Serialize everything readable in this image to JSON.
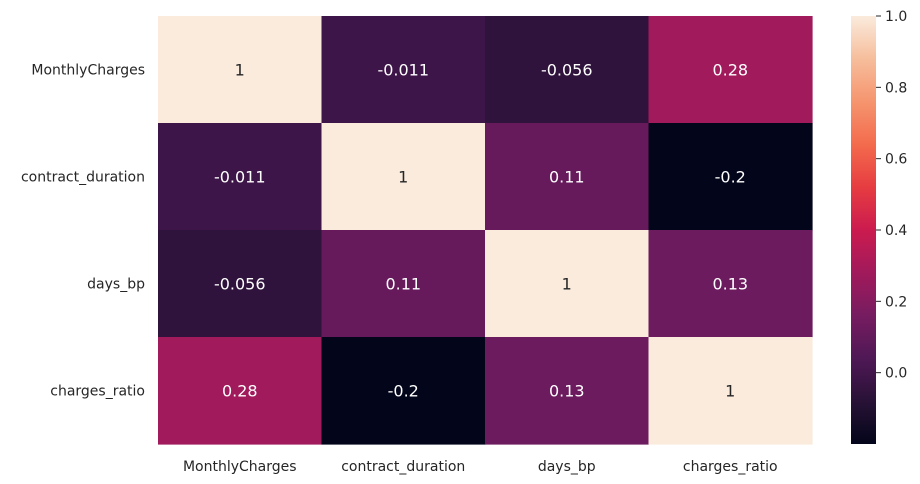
{
  "chart_data": {
    "type": "heatmap",
    "row_labels": [
      "MonthlyCharges",
      "contract_duration",
      "days_bp",
      "charges_ratio"
    ],
    "col_labels": [
      "MonthlyCharges",
      "contract_duration",
      "days_bp",
      "charges_ratio"
    ],
    "values": [
      [
        1,
        -0.011,
        -0.056,
        0.28
      ],
      [
        -0.011,
        1,
        0.11,
        -0.2
      ],
      [
        -0.056,
        0.11,
        1,
        0.13
      ],
      [
        0.28,
        -0.2,
        0.13,
        1
      ]
    ],
    "annotations": [
      [
        "1",
        "-0.011",
        "-0.056",
        "0.28"
      ],
      [
        "-0.011",
        "1",
        "0.11",
        "-0.2"
      ],
      [
        "-0.056",
        "0.11",
        "1",
        "0.13"
      ],
      [
        "0.28",
        "-0.2",
        "0.13",
        "1"
      ]
    ],
    "colorbar": {
      "min": -0.2,
      "max": 1.0,
      "ticks": [
        0.0,
        0.2,
        0.4,
        0.6,
        0.8,
        1.0
      ],
      "tick_labels": [
        "0.0",
        "0.2",
        "0.4",
        "0.6",
        "0.8",
        "1.0"
      ],
      "colormap": "rocket",
      "position": "right"
    },
    "title": "",
    "xlabel": "",
    "ylabel": ""
  }
}
